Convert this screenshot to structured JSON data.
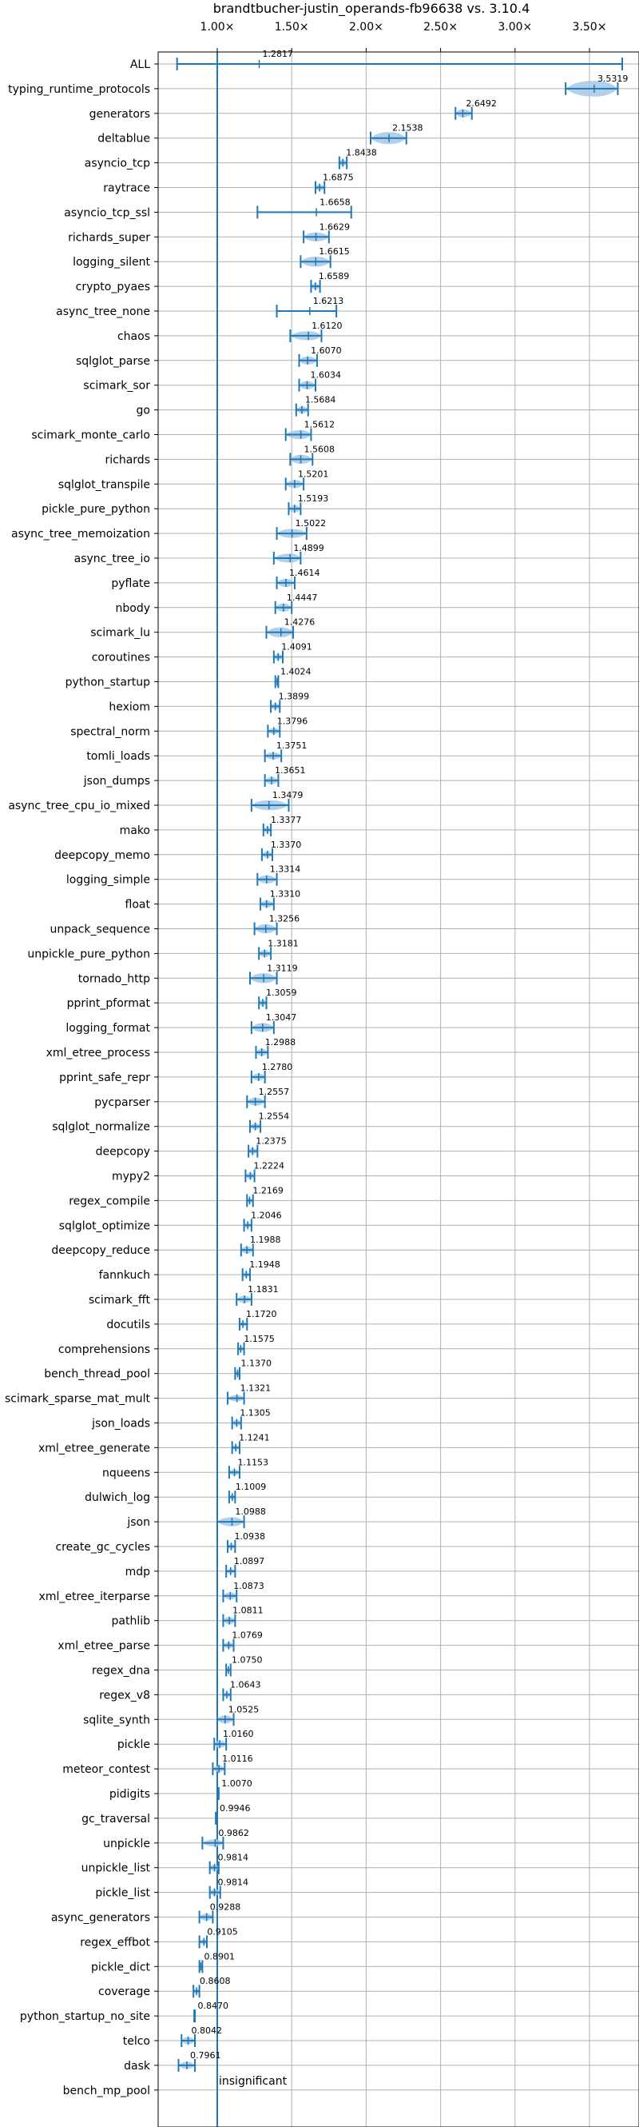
{
  "chart_data": {
    "type": "violin",
    "title": "brandtbucher-justin_operands-fb96638 vs. 3.10.4",
    "xlim": [
      0.63,
      3.88
    ],
    "x_ticks": [
      1.0,
      1.5,
      2.0,
      2.5,
      3.0,
      3.5
    ],
    "x_tick_labels": [
      "1.00×",
      "1.50×",
      "2.00×",
      "2.50×",
      "3.00×",
      "3.50×"
    ],
    "reference_line": 1.0,
    "grid": true,
    "colors": {
      "line": "#1f77b4",
      "violin": "#a6c8e8",
      "grid": "#b0b0b0"
    },
    "insignificant_label": "insignificant",
    "benchmarks": [
      {
        "name": "ALL",
        "value": 1.2817,
        "value_label": "1.2817",
        "low": 0.73,
        "high": 3.72,
        "spread": 0.0
      },
      {
        "name": "typing_runtime_protocols",
        "value": 3.5319,
        "value_label": "3.5319",
        "low": 3.34,
        "high": 3.69,
        "spread": 0.13
      },
      {
        "name": "generators",
        "value": 2.6492,
        "value_label": "2.6492",
        "low": 2.6,
        "high": 2.71,
        "spread": 0.05
      },
      {
        "name": "deltablue",
        "value": 2.1538,
        "value_label": "2.1538",
        "low": 2.03,
        "high": 2.27,
        "spread": 0.09
      },
      {
        "name": "asyncio_tcp",
        "value": 1.8438,
        "value_label": "1.8438",
        "low": 1.82,
        "high": 1.87,
        "spread": 0.03
      },
      {
        "name": "raytrace",
        "value": 1.6875,
        "value_label": "1.6875",
        "low": 1.66,
        "high": 1.72,
        "spread": 0.03
      },
      {
        "name": "asyncio_tcp_ssl",
        "value": 1.6658,
        "value_label": "1.6658",
        "low": 1.27,
        "high": 1.9,
        "spread": 0.0
      },
      {
        "name": "richards_super",
        "value": 1.6629,
        "value_label": "1.6629",
        "low": 1.58,
        "high": 1.75,
        "spread": 0.06
      },
      {
        "name": "logging_silent",
        "value": 1.6615,
        "value_label": "1.6615",
        "low": 1.56,
        "high": 1.76,
        "spread": 0.07
      },
      {
        "name": "crypto_pyaes",
        "value": 1.6589,
        "value_label": "1.6589",
        "low": 1.63,
        "high": 1.69,
        "spread": 0.03
      },
      {
        "name": "async_tree_none",
        "value": 1.6213,
        "value_label": "1.6213",
        "low": 1.4,
        "high": 1.8,
        "spread": 0.0
      },
      {
        "name": "chaos",
        "value": 1.612,
        "value_label": "1.6120",
        "low": 1.49,
        "high": 1.7,
        "spread": 0.06
      },
      {
        "name": "sqlglot_parse",
        "value": 1.607,
        "value_label": "1.6070",
        "low": 1.55,
        "high": 1.67,
        "spread": 0.05
      },
      {
        "name": "scimark_sor",
        "value": 1.6034,
        "value_label": "1.6034",
        "low": 1.55,
        "high": 1.66,
        "spread": 0.05
      },
      {
        "name": "go",
        "value": 1.5684,
        "value_label": "1.5684",
        "low": 1.53,
        "high": 1.61,
        "spread": 0.04
      },
      {
        "name": "scimark_monte_carlo",
        "value": 1.5612,
        "value_label": "1.5612",
        "low": 1.46,
        "high": 1.63,
        "spread": 0.06
      },
      {
        "name": "richards",
        "value": 1.5608,
        "value_label": "1.5608",
        "low": 1.49,
        "high": 1.64,
        "spread": 0.06
      },
      {
        "name": "sqlglot_transpile",
        "value": 1.5201,
        "value_label": "1.5201",
        "low": 1.46,
        "high": 1.58,
        "spread": 0.05
      },
      {
        "name": "pickle_pure_python",
        "value": 1.5193,
        "value_label": "1.5193",
        "low": 1.48,
        "high": 1.56,
        "spread": 0.04
      },
      {
        "name": "async_tree_memoization",
        "value": 1.5022,
        "value_label": "1.5022",
        "low": 1.4,
        "high": 1.6,
        "spread": 0.06
      },
      {
        "name": "async_tree_io",
        "value": 1.4899,
        "value_label": "1.4899",
        "low": 1.38,
        "high": 1.56,
        "spread": 0.06
      },
      {
        "name": "pyflate",
        "value": 1.4614,
        "value_label": "1.4614",
        "low": 1.4,
        "high": 1.52,
        "spread": 0.05
      },
      {
        "name": "nbody",
        "value": 1.4447,
        "value_label": "1.4447",
        "low": 1.39,
        "high": 1.5,
        "spread": 0.05
      },
      {
        "name": "scimark_lu",
        "value": 1.4276,
        "value_label": "1.4276",
        "low": 1.33,
        "high": 1.51,
        "spread": 0.07
      },
      {
        "name": "coroutines",
        "value": 1.4091,
        "value_label": "1.4091",
        "low": 1.38,
        "high": 1.44,
        "spread": 0.03
      },
      {
        "name": "python_startup",
        "value": 1.4024,
        "value_label": "1.4024",
        "low": 1.39,
        "high": 1.41,
        "spread": 0.01
      },
      {
        "name": "hexiom",
        "value": 1.3899,
        "value_label": "1.3899",
        "low": 1.36,
        "high": 1.42,
        "spread": 0.03
      },
      {
        "name": "spectral_norm",
        "value": 1.3796,
        "value_label": "1.3796",
        "low": 1.34,
        "high": 1.42,
        "spread": 0.03
      },
      {
        "name": "tomli_loads",
        "value": 1.3751,
        "value_label": "1.3751",
        "low": 1.32,
        "high": 1.43,
        "spread": 0.04
      },
      {
        "name": "json_dumps",
        "value": 1.3651,
        "value_label": "1.3651",
        "low": 1.32,
        "high": 1.41,
        "spread": 0.04
      },
      {
        "name": "async_tree_cpu_io_mixed",
        "value": 1.3479,
        "value_label": "1.3479",
        "low": 1.23,
        "high": 1.48,
        "spread": 0.07
      },
      {
        "name": "mako",
        "value": 1.3377,
        "value_label": "1.3377",
        "low": 1.31,
        "high": 1.36,
        "spread": 0.03
      },
      {
        "name": "deepcopy_memo",
        "value": 1.337,
        "value_label": "1.3370",
        "low": 1.3,
        "high": 1.37,
        "spread": 0.03
      },
      {
        "name": "logging_simple",
        "value": 1.3314,
        "value_label": "1.3314",
        "low": 1.27,
        "high": 1.4,
        "spread": 0.05
      },
      {
        "name": "float",
        "value": 1.331,
        "value_label": "1.3310",
        "low": 1.29,
        "high": 1.38,
        "spread": 0.04
      },
      {
        "name": "unpack_sequence",
        "value": 1.3256,
        "value_label": "1.3256",
        "low": 1.25,
        "high": 1.4,
        "spread": 0.06
      },
      {
        "name": "unpickle_pure_python",
        "value": 1.3181,
        "value_label": "1.3181",
        "low": 1.28,
        "high": 1.36,
        "spread": 0.04
      },
      {
        "name": "tornado_http",
        "value": 1.3119,
        "value_label": "1.3119",
        "low": 1.22,
        "high": 1.4,
        "spread": 0.07
      },
      {
        "name": "pprint_pformat",
        "value": 1.3059,
        "value_label": "1.3059",
        "low": 1.28,
        "high": 1.33,
        "spread": 0.03
      },
      {
        "name": "logging_format",
        "value": 1.3047,
        "value_label": "1.3047",
        "low": 1.23,
        "high": 1.38,
        "spread": 0.06
      },
      {
        "name": "xml_etree_process",
        "value": 1.2988,
        "value_label": "1.2988",
        "low": 1.26,
        "high": 1.34,
        "spread": 0.04
      },
      {
        "name": "pprint_safe_repr",
        "value": 1.278,
        "value_label": "1.2780",
        "low": 1.23,
        "high": 1.32,
        "spread": 0.04
      },
      {
        "name": "pycparser",
        "value": 1.2557,
        "value_label": "1.2557",
        "low": 1.2,
        "high": 1.32,
        "spread": 0.05
      },
      {
        "name": "sqlglot_normalize",
        "value": 1.2554,
        "value_label": "1.2554",
        "low": 1.22,
        "high": 1.29,
        "spread": 0.03
      },
      {
        "name": "deepcopy",
        "value": 1.2375,
        "value_label": "1.2375",
        "low": 1.21,
        "high": 1.27,
        "spread": 0.03
      },
      {
        "name": "mypy2",
        "value": 1.2224,
        "value_label": "1.2224",
        "low": 1.19,
        "high": 1.25,
        "spread": 0.03
      },
      {
        "name": "regex_compile",
        "value": 1.2169,
        "value_label": "1.2169",
        "low": 1.2,
        "high": 1.24,
        "spread": 0.02
      },
      {
        "name": "sqlglot_optimize",
        "value": 1.2046,
        "value_label": "1.2046",
        "low": 1.18,
        "high": 1.23,
        "spread": 0.02
      },
      {
        "name": "deepcopy_reduce",
        "value": 1.1988,
        "value_label": "1.1988",
        "low": 1.16,
        "high": 1.24,
        "spread": 0.04
      },
      {
        "name": "fannkuch",
        "value": 1.1948,
        "value_label": "1.1948",
        "low": 1.17,
        "high": 1.22,
        "spread": 0.02
      },
      {
        "name": "scimark_fft",
        "value": 1.1831,
        "value_label": "1.1831",
        "low": 1.13,
        "high": 1.23,
        "spread": 0.04
      },
      {
        "name": "docutils",
        "value": 1.172,
        "value_label": "1.1720",
        "low": 1.15,
        "high": 1.2,
        "spread": 0.02
      },
      {
        "name": "comprehensions",
        "value": 1.1575,
        "value_label": "1.1575",
        "low": 1.14,
        "high": 1.18,
        "spread": 0.02
      },
      {
        "name": "bench_thread_pool",
        "value": 1.137,
        "value_label": "1.1370",
        "low": 1.12,
        "high": 1.15,
        "spread": 0.02
      },
      {
        "name": "scimark_sparse_mat_mult",
        "value": 1.1321,
        "value_label": "1.1321",
        "low": 1.07,
        "high": 1.18,
        "spread": 0.03
      },
      {
        "name": "json_loads",
        "value": 1.1305,
        "value_label": "1.1305",
        "low": 1.1,
        "high": 1.16,
        "spread": 0.03
      },
      {
        "name": "xml_etree_generate",
        "value": 1.1241,
        "value_label": "1.1241",
        "low": 1.1,
        "high": 1.15,
        "spread": 0.02
      },
      {
        "name": "nqueens",
        "value": 1.1153,
        "value_label": "1.1153",
        "low": 1.08,
        "high": 1.15,
        "spread": 0.03
      },
      {
        "name": "dulwich_log",
        "value": 1.1009,
        "value_label": "1.1009",
        "low": 1.08,
        "high": 1.12,
        "spread": 0.02
      },
      {
        "name": "json",
        "value": 1.0988,
        "value_label": "1.0988",
        "low": 1.0,
        "high": 1.18,
        "spread": 0.06
      },
      {
        "name": "create_gc_cycles",
        "value": 1.0938,
        "value_label": "1.0938",
        "low": 1.07,
        "high": 1.12,
        "spread": 0.02
      },
      {
        "name": "mdp",
        "value": 1.0897,
        "value_label": "1.0897",
        "low": 1.06,
        "high": 1.12,
        "spread": 0.02
      },
      {
        "name": "xml_etree_iterparse",
        "value": 1.0873,
        "value_label": "1.0873",
        "low": 1.04,
        "high": 1.13,
        "spread": 0.04
      },
      {
        "name": "pathlib",
        "value": 1.0811,
        "value_label": "1.0811",
        "low": 1.04,
        "high": 1.12,
        "spread": 0.04
      },
      {
        "name": "xml_etree_parse",
        "value": 1.0769,
        "value_label": "1.0769",
        "low": 1.04,
        "high": 1.11,
        "spread": 0.03
      },
      {
        "name": "regex_dna",
        "value": 1.075,
        "value_label": "1.0750",
        "low": 1.06,
        "high": 1.09,
        "spread": 0.01
      },
      {
        "name": "regex_v8",
        "value": 1.0643,
        "value_label": "1.0643",
        "low": 1.04,
        "high": 1.09,
        "spread": 0.02
      },
      {
        "name": "sqlite_synth",
        "value": 1.0525,
        "value_label": "1.0525",
        "low": 1.0,
        "high": 1.11,
        "spread": 0.05
      },
      {
        "name": "pickle",
        "value": 1.016,
        "value_label": "1.0160",
        "low": 0.98,
        "high": 1.06,
        "spread": 0.04
      },
      {
        "name": "meteor_contest",
        "value": 1.0116,
        "value_label": "1.0116",
        "low": 0.97,
        "high": 1.05,
        "spread": 0.03
      },
      {
        "name": "pidigits",
        "value": 1.007,
        "value_label": "1.0070",
        "low": 1.0,
        "high": 1.01,
        "spread": 0.01
      },
      {
        "name": "gc_traversal",
        "value": 0.9946,
        "value_label": "0.9946",
        "low": 0.99,
        "high": 1.0,
        "spread": 0.0
      },
      {
        "name": "unpickle",
        "value": 0.9862,
        "value_label": "0.9862",
        "low": 0.9,
        "high": 1.04,
        "spread": 0.04
      },
      {
        "name": "unpickle_list",
        "value": 0.9814,
        "value_label": "0.9814",
        "low": 0.95,
        "high": 1.01,
        "spread": 0.03
      },
      {
        "name": "pickle_list",
        "value": 0.9814,
        "value_label": "0.9814",
        "low": 0.95,
        "high": 1.02,
        "spread": 0.03
      },
      {
        "name": "async_generators",
        "value": 0.9288,
        "value_label": "0.9288",
        "low": 0.88,
        "high": 0.97,
        "spread": 0.04
      },
      {
        "name": "regex_effbot",
        "value": 0.9105,
        "value_label": "0.9105",
        "low": 0.88,
        "high": 0.93,
        "spread": 0.02
      },
      {
        "name": "pickle_dict",
        "value": 0.8901,
        "value_label": "0.8901",
        "low": 0.88,
        "high": 0.9,
        "spread": 0.01
      },
      {
        "name": "coverage",
        "value": 0.8608,
        "value_label": "0.8608",
        "low": 0.84,
        "high": 0.88,
        "spread": 0.02
      },
      {
        "name": "python_startup_no_site",
        "value": 0.847,
        "value_label": "0.8470",
        "low": 0.845,
        "high": 0.85,
        "spread": 0.0
      },
      {
        "name": "telco",
        "value": 0.8042,
        "value_label": "0.8042",
        "low": 0.76,
        "high": 0.85,
        "spread": 0.04
      },
      {
        "name": "dask",
        "value": 0.7961,
        "value_label": "0.7961",
        "low": 0.74,
        "high": 0.85,
        "spread": 0.04
      },
      {
        "name": "bench_mp_pool",
        "value": null,
        "value_label": "",
        "low": null,
        "high": null,
        "spread": 0.0
      }
    ]
  }
}
